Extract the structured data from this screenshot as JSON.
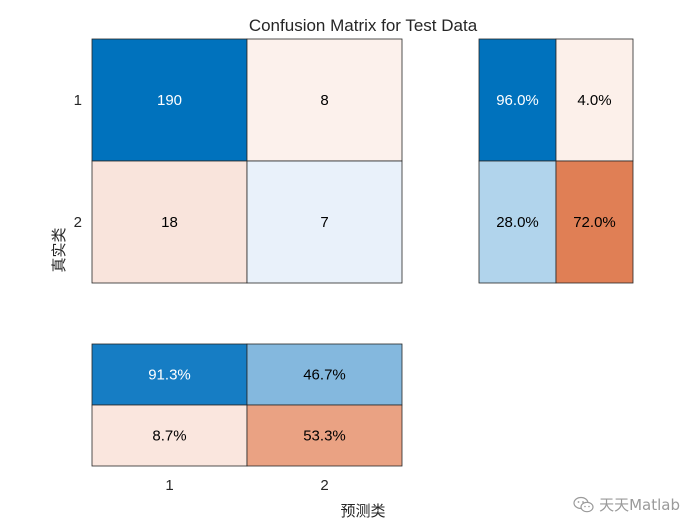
{
  "chart_data": {
    "type": "heatmap",
    "title": "Confusion Matrix for Test Data",
    "xlabel": "预测类",
    "ylabel": "真实类",
    "classes": [
      "1",
      "2"
    ],
    "counts": [
      [
        190,
        8
      ],
      [
        18,
        7
      ]
    ],
    "row_summary": [
      [
        "96.0%",
        "4.0%"
      ],
      [
        "28.0%",
        "72.0%"
      ]
    ],
    "column_summary": [
      [
        "91.3%",
        "46.7%"
      ],
      [
        "8.7%",
        "53.3%"
      ]
    ],
    "colors": {
      "counts": [
        [
          "#0072bd",
          "#fcf1ec"
        ],
        [
          "#f9e4dc",
          "#e9f1fa"
        ]
      ],
      "row_summary": [
        [
          "#0072bd",
          "#fcf0ea"
        ],
        [
          "#b1d4ec",
          "#e07f55"
        ]
      ],
      "column_summary": [
        [
          "#167dc4",
          "#84b8de"
        ],
        [
          "#fae6de",
          "#eaa283"
        ]
      ],
      "light_text": "#ffffff",
      "dark_text": "#000000"
    }
  },
  "watermark": "天天Matlab"
}
